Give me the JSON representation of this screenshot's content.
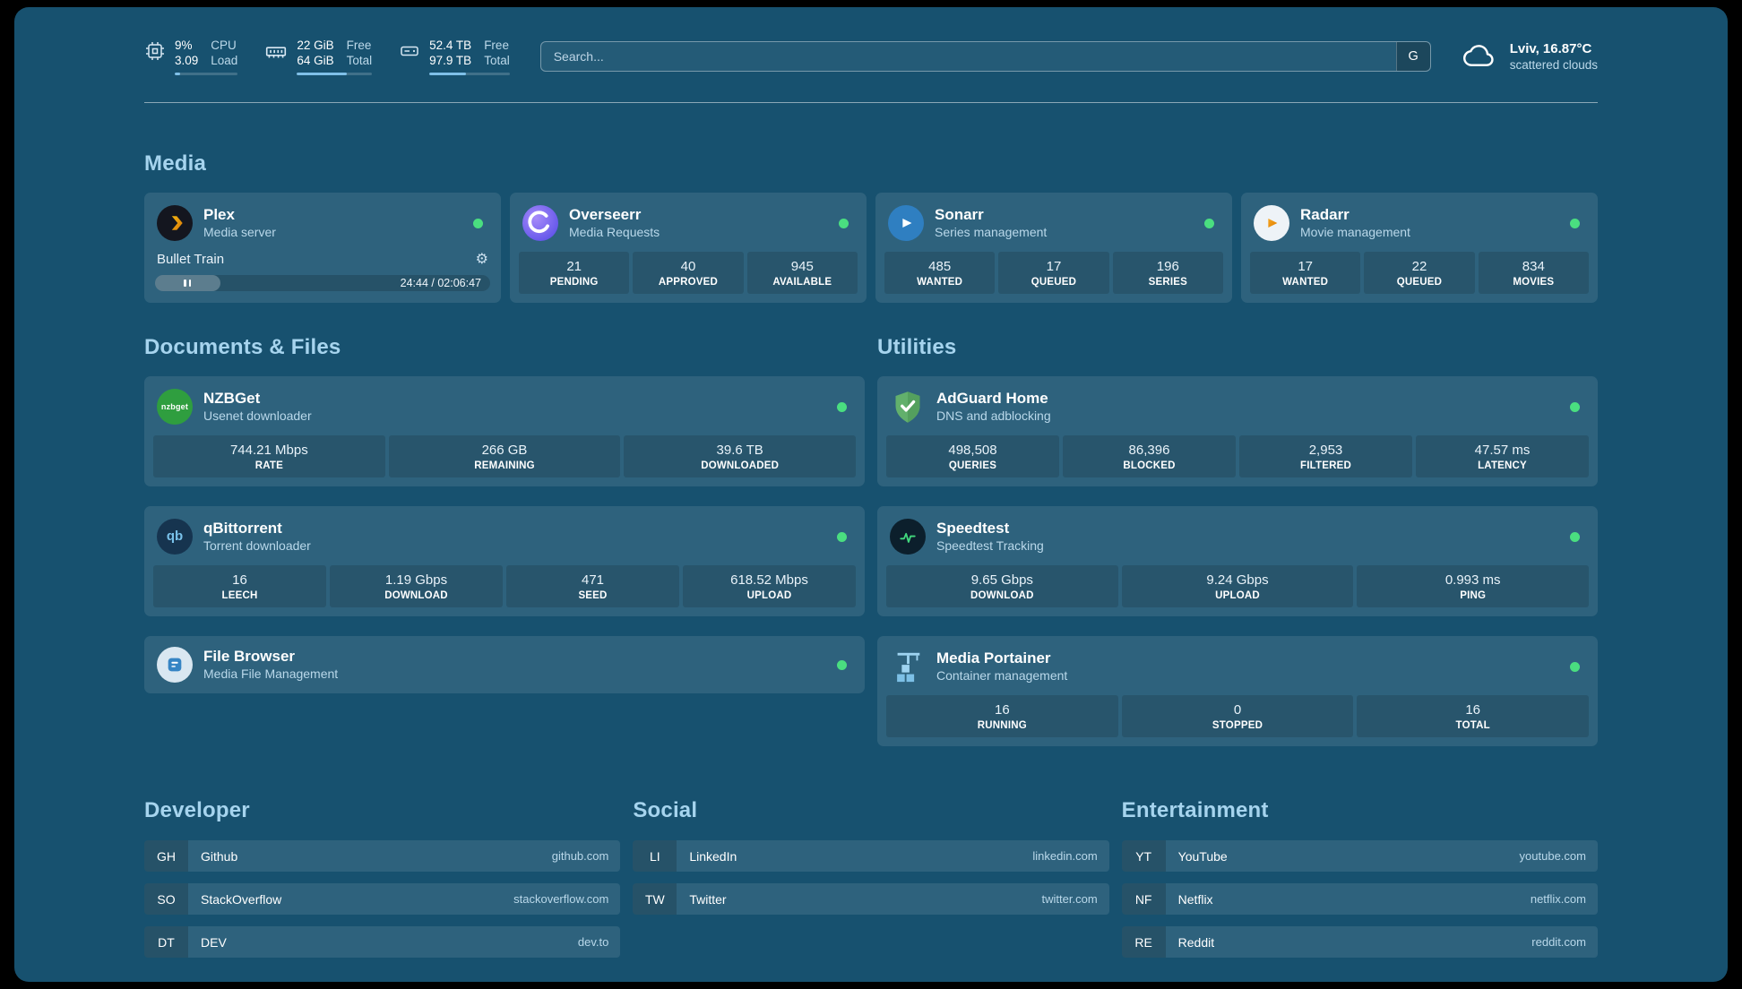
{
  "colors": {
    "background": "#17516f",
    "card": "#2c6383",
    "accent": "#7fc0e8",
    "status_online": "#4ade80",
    "section_title": "#a6d4ee"
  },
  "topbar": {
    "cpu": {
      "value_top": "9%",
      "value_bottom": "3.09",
      "label_top": "CPU",
      "label_bottom": "Load",
      "bar_percent": 9
    },
    "memory": {
      "value_top": "22 GiB",
      "value_bottom": "64 GiB",
      "label_top": "Free",
      "label_bottom": "Total",
      "bar_percent": 66
    },
    "disk": {
      "value_top": "52.4 TB",
      "value_bottom": "97.9 TB",
      "label_top": "Free",
      "label_bottom": "Total",
      "bar_percent": 46
    },
    "search": {
      "placeholder": "Search...",
      "provider_label": "G",
      "value": ""
    },
    "weather": {
      "location": "Lviv, 16.87°C",
      "condition": "scattered clouds"
    }
  },
  "sections": {
    "media": "Media",
    "documents": "Documents & Files",
    "utilities": "Utilities"
  },
  "media": {
    "plex": {
      "name": "Plex",
      "subtitle": "Media server",
      "now_playing": "Bullet Train",
      "time": "24:44 / 02:06:47",
      "progress_percent": 19.5
    },
    "overseerr": {
      "name": "Overseerr",
      "subtitle": "Media Requests",
      "stats": [
        {
          "value": "21",
          "label": "PENDING"
        },
        {
          "value": "40",
          "label": "APPROVED"
        },
        {
          "value": "945",
          "label": "AVAILABLE"
        }
      ]
    },
    "sonarr": {
      "name": "Sonarr",
      "subtitle": "Series management",
      "stats": [
        {
          "value": "485",
          "label": "WANTED"
        },
        {
          "value": "17",
          "label": "QUEUED"
        },
        {
          "value": "196",
          "label": "SERIES"
        }
      ]
    },
    "radarr": {
      "name": "Radarr",
      "subtitle": "Movie management",
      "stats": [
        {
          "value": "17",
          "label": "WANTED"
        },
        {
          "value": "22",
          "label": "QUEUED"
        },
        {
          "value": "834",
          "label": "MOVIES"
        }
      ]
    }
  },
  "documents": {
    "nzbget": {
      "name": "NZBGet",
      "subtitle": "Usenet downloader",
      "stats": [
        {
          "value": "744.21 Mbps",
          "label": "RATE"
        },
        {
          "value": "266 GB",
          "label": "REMAINING"
        },
        {
          "value": "39.6 TB",
          "label": "DOWNLOADED"
        }
      ]
    },
    "qbittorrent": {
      "name": "qBittorrent",
      "subtitle": "Torrent downloader",
      "stats": [
        {
          "value": "16",
          "label": "LEECH"
        },
        {
          "value": "1.19 Gbps",
          "label": "DOWNLOAD"
        },
        {
          "value": "471",
          "label": "SEED"
        },
        {
          "value": "618.52 Mbps",
          "label": "UPLOAD"
        }
      ]
    },
    "filebrowser": {
      "name": "File Browser",
      "subtitle": "Media File Management"
    }
  },
  "utilities": {
    "adguard": {
      "name": "AdGuard Home",
      "subtitle": "DNS and adblocking",
      "stats": [
        {
          "value": "498,508",
          "label": "QUERIES"
        },
        {
          "value": "86,396",
          "label": "BLOCKED"
        },
        {
          "value": "2,953",
          "label": "FILTERED"
        },
        {
          "value": "47.57 ms",
          "label": "LATENCY"
        }
      ]
    },
    "speedtest": {
      "name": "Speedtest",
      "subtitle": "Speedtest Tracking",
      "stats": [
        {
          "value": "9.65 Gbps",
          "label": "DOWNLOAD"
        },
        {
          "value": "9.24 Gbps",
          "label": "UPLOAD"
        },
        {
          "value": "0.993 ms",
          "label": "PING"
        }
      ]
    },
    "portainer": {
      "name": "Media Portainer",
      "subtitle": "Container management",
      "stats": [
        {
          "value": "16",
          "label": "RUNNING"
        },
        {
          "value": "0",
          "label": "STOPPED"
        },
        {
          "value": "16",
          "label": "TOTAL"
        }
      ]
    }
  },
  "bookmarks": {
    "developer": {
      "title": "Developer",
      "items": [
        {
          "abbr": "GH",
          "name": "Github",
          "domain": "github.com"
        },
        {
          "abbr": "SO",
          "name": "StackOverflow",
          "domain": "stackoverflow.com"
        },
        {
          "abbr": "DT",
          "name": "DEV",
          "domain": "dev.to"
        }
      ]
    },
    "social": {
      "title": "Social",
      "items": [
        {
          "abbr": "LI",
          "name": "LinkedIn",
          "domain": "linkedin.com"
        },
        {
          "abbr": "TW",
          "name": "Twitter",
          "domain": "twitter.com"
        }
      ]
    },
    "entertainment": {
      "title": "Entertainment",
      "items": [
        {
          "abbr": "YT",
          "name": "YouTube",
          "domain": "youtube.com"
        },
        {
          "abbr": "NF",
          "name": "Netflix",
          "domain": "netflix.com"
        },
        {
          "abbr": "RE",
          "name": "Reddit",
          "domain": "reddit.com"
        }
      ]
    }
  },
  "icons": {
    "gear": "⚙",
    "qbittorrent_text": "qb",
    "nzbget_text": "nzbget"
  }
}
